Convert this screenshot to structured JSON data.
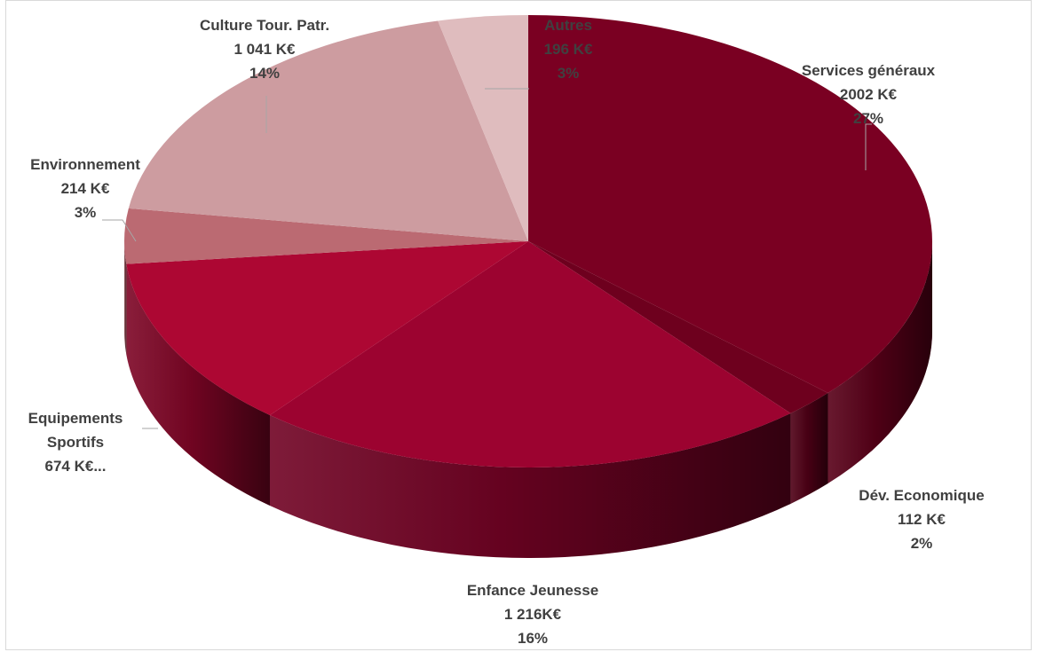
{
  "chart_data": {
    "type": "pie",
    "style": "3d",
    "slices": [
      {
        "name": "Services généraux",
        "value_text": "2002 K€",
        "percent_text": "27%",
        "value": 2002,
        "color": "#7a0022"
      },
      {
        "name": "Dév. Economique",
        "value_text": "112 K€",
        "percent_text": "2%",
        "value": 112,
        "color": "#6e001e"
      },
      {
        "name": "Enfance Jeunesse",
        "value_text": "1 216K€",
        "percent_text": "16%",
        "value": 1216,
        "color": "#9c0330"
      },
      {
        "name": "Equipements Sportifs",
        "value_text": "674 K€...",
        "percent_text": "",
        "value": 674,
        "color": "#ad0733"
      },
      {
        "name": "Environnement",
        "value_text": "214 K€",
        "percent_text": "3%",
        "value": 214,
        "color": "#bb6a72"
      },
      {
        "name": "Culture Tour. Patr.",
        "value_text": "1 041 K€",
        "percent_text": "14%",
        "value": 1041,
        "color": "#cd9ca0"
      },
      {
        "name": "Autres",
        "value_text": "196 K€",
        "percent_text": "3%",
        "value": 196,
        "color": "#dfbcbe"
      }
    ],
    "legend": "none"
  }
}
